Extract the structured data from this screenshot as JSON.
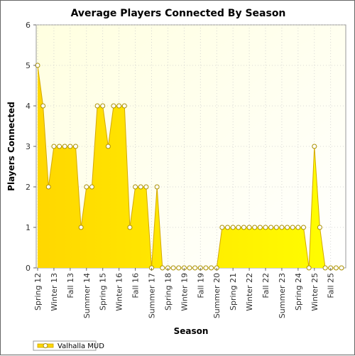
{
  "chart_data": {
    "type": "area",
    "title": "Average Players Connected By Season",
    "xlabel": "Season",
    "ylabel": "Players Connected",
    "ylim": [
      0,
      6
    ],
    "yticks": [
      0,
      1,
      2,
      3,
      4,
      5,
      6
    ],
    "grid": true,
    "legend_position": "bottom-left",
    "x_tick_labels": [
      "Spring 12",
      "Winter 13",
      "Fall 13",
      "Summer 14",
      "Spring 15",
      "Winter 16",
      "Fall 16",
      "Summer 17",
      "Spring 18",
      "Winter 19",
      "Fall 19",
      "Summer 20",
      "Spring 21",
      "Winter 22",
      "Fall 22",
      "Summer 23",
      "Spring 24",
      "Winter 25",
      "Fall 25"
    ],
    "categories": [
      "Spring 12",
      "Summer 12",
      "Fall 12",
      "Winter 13",
      "Spring 13",
      "Summer 13",
      "Fall 13",
      "Winter 14",
      "Spring 14",
      "Summer 14",
      "Fall 14",
      "Winter 15",
      "Spring 15",
      "Summer 15",
      "Fall 15",
      "Winter 16",
      "Spring 16",
      "Summer 16",
      "Fall 16",
      "Winter 17",
      "Spring 17",
      "Summer 17",
      "Fall 17",
      "Winter 18",
      "Spring 18",
      "Summer 18",
      "Fall 18",
      "Winter 19",
      "Spring 19",
      "Summer 19",
      "Fall 19",
      "Winter 20",
      "Spring 20",
      "Summer 20",
      "Fall 20",
      "Winter 21",
      "Spring 21",
      "Summer 21",
      "Fall 21",
      "Winter 22",
      "Spring 22",
      "Summer 22",
      "Fall 22",
      "Winter 23",
      "Spring 23",
      "Summer 23",
      "Fall 23",
      "Winter 24",
      "Spring 24",
      "Summer 24",
      "Fall 24",
      "Winter 25",
      "Spring 25",
      "Summer 25",
      "Fall 25",
      "Winter 26",
      "Spring 26"
    ],
    "series": [
      {
        "name": "Valhalla MUD",
        "color": "#ffee00",
        "values": [
          5,
          4,
          2,
          3,
          3,
          3,
          3,
          3,
          1,
          2,
          2,
          4,
          4,
          3,
          4,
          4,
          4,
          1,
          2,
          2,
          2,
          0,
          2,
          0,
          0,
          0,
          0,
          0,
          0,
          0,
          0,
          0,
          0,
          0,
          1,
          1,
          1,
          1,
          1,
          1,
          1,
          1,
          1,
          1,
          1,
          1,
          1,
          1,
          1,
          1,
          0,
          3,
          1,
          0,
          0,
          0,
          0
        ]
      }
    ]
  }
}
